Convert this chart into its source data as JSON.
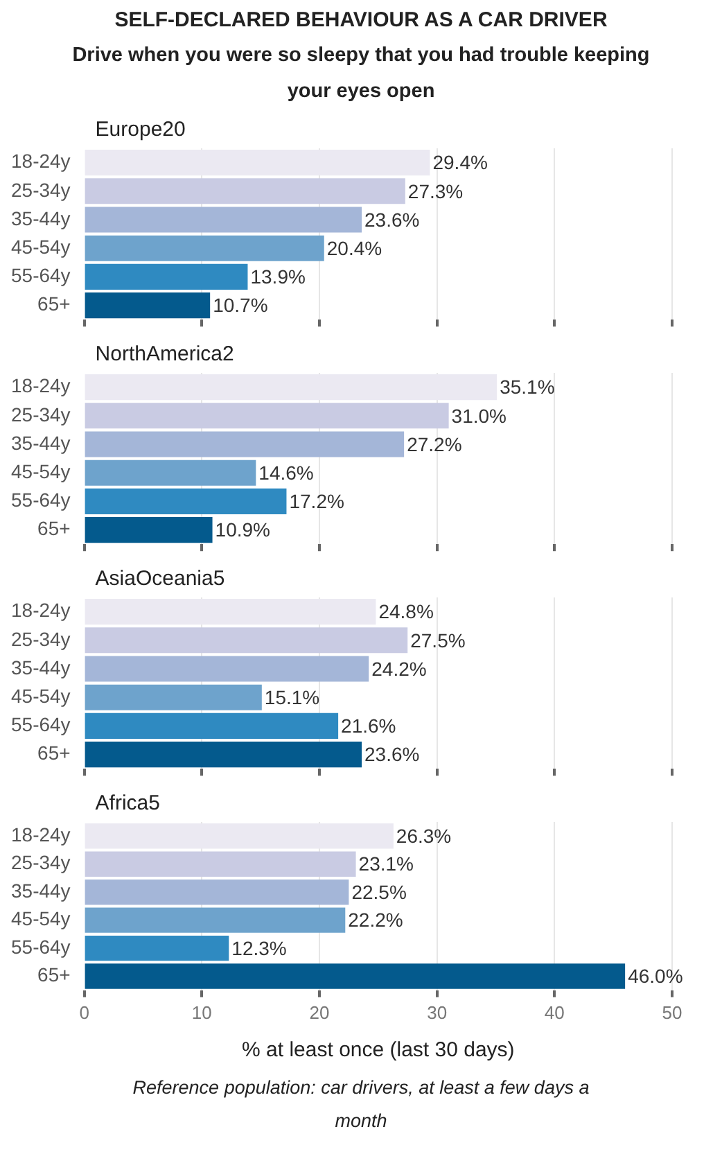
{
  "chart_data": [
    {
      "type": "bar",
      "orientation": "horizontal",
      "title": "Europe20",
      "annotations": [
        "SELF-DECLARED BEHAVIOUR AS A CAR DRIVER",
        "Drive when you were so sleepy that you had trouble keeping your eyes open"
      ],
      "categories": [
        "18-24y",
        "25-34y",
        "35-44y",
        "45-54y",
        "55-64y",
        "65+"
      ],
      "values": [
        29.4,
        27.3,
        23.6,
        20.4,
        13.9,
        10.7
      ],
      "value_labels": [
        "29.4%",
        "27.3%",
        "23.6%",
        "20.4%",
        "13.9%",
        "10.7%"
      ],
      "colors": [
        "#ebe9f2",
        "#c9cbe3",
        "#a4b6d8",
        "#6ea3cc",
        "#2f8ac1",
        "#045a8d"
      ],
      "xlim": [
        0,
        50
      ],
      "xticks": [
        0,
        10,
        20,
        30,
        40,
        50
      ],
      "grid": "x",
      "tick_labels": "y"
    },
    {
      "type": "bar",
      "orientation": "horizontal",
      "title": "NorthAmerica2",
      "categories": [
        "18-24y",
        "25-34y",
        "35-44y",
        "45-54y",
        "55-64y",
        "65+"
      ],
      "values": [
        35.1,
        31.0,
        27.2,
        14.6,
        17.2,
        10.9
      ],
      "value_labels": [
        "35.1%",
        "31.0%",
        "27.2%",
        "14.6%",
        "17.2%",
        "10.9%"
      ],
      "colors": [
        "#ebe9f2",
        "#c9cbe3",
        "#a4b6d8",
        "#6ea3cc",
        "#2f8ac1",
        "#045a8d"
      ],
      "xlim": [
        0,
        50
      ],
      "xticks": [
        0,
        10,
        20,
        30,
        40,
        50
      ],
      "grid": "x",
      "tick_labels": "y"
    },
    {
      "type": "bar",
      "orientation": "horizontal",
      "title": "AsiaOceania5",
      "categories": [
        "18-24y",
        "25-34y",
        "35-44y",
        "45-54y",
        "55-64y",
        "65+"
      ],
      "values": [
        24.8,
        27.5,
        24.2,
        15.1,
        21.6,
        23.6
      ],
      "value_labels": [
        "24.8%",
        "27.5%",
        "24.2%",
        "15.1%",
        "21.6%",
        "23.6%"
      ],
      "colors": [
        "#ebe9f2",
        "#c9cbe3",
        "#a4b6d8",
        "#6ea3cc",
        "#2f8ac1",
        "#045a8d"
      ],
      "xlim": [
        0,
        50
      ],
      "xticks": [
        0,
        10,
        20,
        30,
        40,
        50
      ],
      "grid": "x",
      "tick_labels": "y"
    },
    {
      "type": "bar",
      "orientation": "horizontal",
      "title": "Africa5",
      "xlabel": "% at least once (last 30 days)",
      "annotations": [
        "Reference population: car drivers, at least a few days a month"
      ],
      "categories": [
        "18-24y",
        "25-34y",
        "35-44y",
        "45-54y",
        "55-64y",
        "65+"
      ],
      "values": [
        26.3,
        23.1,
        22.5,
        22.2,
        12.3,
        46.0
      ],
      "value_labels": [
        "26.3%",
        "23.1%",
        "22.5%",
        "22.2%",
        "12.3%",
        "46.0%"
      ],
      "colors": [
        "#ebe9f2",
        "#c9cbe3",
        "#a4b6d8",
        "#6ea3cc",
        "#2f8ac1",
        "#045a8d"
      ],
      "xlim": [
        0,
        50
      ],
      "xticks": [
        0,
        10,
        20,
        30,
        40,
        50
      ],
      "grid": "x"
    }
  ]
}
